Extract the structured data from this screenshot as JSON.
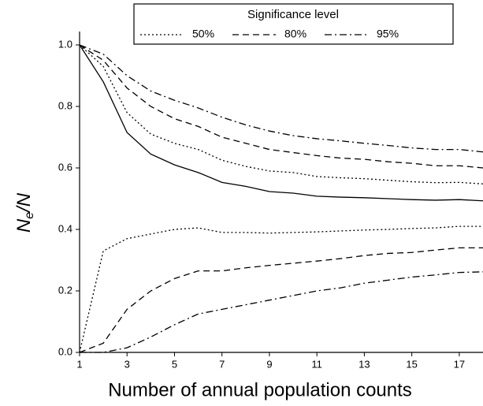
{
  "chart_data": {
    "type": "line",
    "xlabel": "Number of annual population counts",
    "ylabel": {
      "main": "N",
      "sub": "e",
      "tail": "/N"
    },
    "legend_title": "Significance level",
    "x": [
      1,
      2,
      3,
      4,
      5,
      6,
      7,
      8,
      9,
      10,
      11,
      12,
      13,
      14,
      15,
      16,
      17,
      18
    ],
    "xlim": [
      1,
      18
    ],
    "xticks": [
      1,
      3,
      5,
      7,
      9,
      11,
      13,
      15,
      17
    ],
    "ylim": [
      0,
      1
    ],
    "yticks": [
      {
        "value": 0,
        "label": "0.0"
      },
      {
        "value": 0.2,
        "label": "0.2"
      },
      {
        "value": 0.4,
        "label": "0.4"
      },
      {
        "value": 0.6,
        "label": "0.6"
      },
      {
        "value": 0.8,
        "label": "0.8"
      },
      {
        "value": 1,
        "label": "1.0"
      }
    ],
    "series": [
      {
        "style": "solid",
        "color": "#000000",
        "values": [
          1.0,
          0.88,
          0.715,
          0.645,
          0.61,
          0.585,
          0.553,
          0.54,
          0.523,
          0.518,
          0.508,
          0.505,
          0.503,
          0.5,
          0.497,
          0.495,
          0.497,
          0.493
        ]
      },
      {
        "name": "50%",
        "style": "dotted",
        "color": "#000000",
        "values": [
          1.0,
          0.93,
          0.78,
          0.71,
          0.68,
          0.66,
          0.625,
          0.605,
          0.59,
          0.585,
          0.572,
          0.568,
          0.565,
          0.56,
          0.555,
          0.552,
          0.553,
          0.548
        ],
        "lower": [
          0.0,
          0.33,
          0.37,
          0.385,
          0.4,
          0.405,
          0.39,
          0.39,
          0.388,
          0.39,
          0.392,
          0.395,
          0.398,
          0.4,
          0.403,
          0.405,
          0.41,
          0.41
        ]
      },
      {
        "name": "80%",
        "style": "dashed",
        "color": "#000000",
        "values": [
          1.0,
          0.95,
          0.86,
          0.8,
          0.76,
          0.735,
          0.7,
          0.68,
          0.66,
          0.65,
          0.64,
          0.632,
          0.628,
          0.62,
          0.615,
          0.607,
          0.607,
          0.6
        ],
        "lower": [
          0.0,
          0.03,
          0.14,
          0.2,
          0.24,
          0.265,
          0.265,
          0.275,
          0.283,
          0.29,
          0.297,
          0.305,
          0.315,
          0.322,
          0.325,
          0.333,
          0.34,
          0.34
        ]
      },
      {
        "name": "95%",
        "style": "dashdot",
        "color": "#000000",
        "values": [
          1.0,
          0.97,
          0.9,
          0.85,
          0.82,
          0.795,
          0.765,
          0.74,
          0.72,
          0.705,
          0.695,
          0.688,
          0.68,
          0.673,
          0.665,
          0.66,
          0.66,
          0.652
        ],
        "lower": [
          0.0,
          0.0,
          0.015,
          0.05,
          0.09,
          0.125,
          0.14,
          0.155,
          0.17,
          0.185,
          0.2,
          0.21,
          0.225,
          0.235,
          0.245,
          0.252,
          0.26,
          0.262
        ]
      }
    ]
  }
}
